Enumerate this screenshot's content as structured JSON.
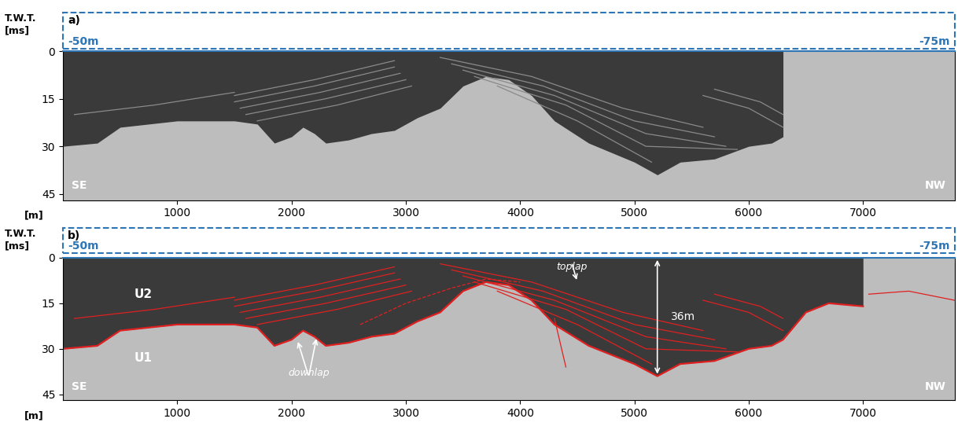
{
  "chart_data": [
    {
      "type": "seismic_profile",
      "panel": "a)",
      "depth_labels": [
        "-50m",
        "-75m"
      ],
      "ylabel": "T.W.T.\n[ms]",
      "xlabel": "[m]",
      "directions": [
        "SE",
        "NW"
      ],
      "xlim": [
        0,
        7800
      ],
      "ylim": [
        47,
        0
      ],
      "xticks": [
        1000,
        2000,
        3000,
        4000,
        5000,
        6000,
        7000
      ],
      "yticks": [
        0,
        15,
        30,
        45
      ],
      "box_color": "#2e75b6",
      "reflector_color": "#8a8a8a",
      "boundary": {
        "x": [
          0,
          300,
          500,
          1000,
          1500,
          1700,
          1850,
          2000,
          2100,
          2200,
          2300,
          2500,
          2700,
          2900,
          3100,
          3300,
          3500,
          3700,
          3900,
          4100,
          4300,
          4600,
          5000,
          5200,
          5400,
          5700,
          6000,
          6200,
          6300
        ],
        "y": [
          30,
          29,
          24,
          22,
          22,
          23,
          29,
          27,
          24,
          26,
          29,
          28,
          26,
          25,
          21,
          18,
          11,
          8,
          9,
          14,
          22,
          29,
          35,
          39,
          35,
          34,
          30,
          29,
          27
        ]
      },
      "reflectors": [
        {
          "x": [
            100,
            800,
            1500
          ],
          "y": [
            20,
            17,
            13
          ]
        },
        {
          "x": [
            1500,
            2200,
            2900
          ],
          "y": [
            14,
            9,
            3
          ]
        },
        {
          "x": [
            1500,
            2200,
            2900
          ],
          "y": [
            16,
            11,
            5
          ]
        },
        {
          "x": [
            1550,
            2250,
            2950
          ],
          "y": [
            18,
            13,
            7
          ]
        },
        {
          "x": [
            1600,
            2300,
            3000
          ],
          "y": [
            20,
            15,
            9
          ]
        },
        {
          "x": [
            1700,
            2400,
            3050
          ],
          "y": [
            22,
            17,
            11
          ]
        },
        {
          "x": [
            3300,
            4100,
            4900,
            5600
          ],
          "y": [
            2,
            8,
            18,
            24
          ]
        },
        {
          "x": [
            3400,
            4200,
            5000,
            5700
          ],
          "y": [
            4,
            11,
            22,
            27
          ]
        },
        {
          "x": [
            3500,
            4300,
            5100,
            5800
          ],
          "y": [
            6,
            14,
            26,
            30
          ]
        },
        {
          "x": [
            3600,
            4400,
            5100,
            5900
          ],
          "y": [
            8,
            17,
            30,
            31
          ]
        },
        {
          "x": [
            3800,
            4500,
            5150
          ],
          "y": [
            11,
            22,
            35
          ]
        },
        {
          "x": [
            5600,
            6000,
            6300
          ],
          "y": [
            14,
            18,
            24
          ]
        },
        {
          "x": [
            5700,
            6100,
            6300
          ],
          "y": [
            12,
            16,
            20
          ]
        }
      ]
    },
    {
      "type": "seismic_profile",
      "panel": "b)",
      "depth_labels": [
        "-50m",
        "-75m"
      ],
      "ylabel": "T.W.T.\n[ms]",
      "xlabel": "[m]",
      "directions": [
        "SE",
        "NW"
      ],
      "xlim": [
        0,
        7800
      ],
      "ylim": [
        47,
        0
      ],
      "xticks": [
        1000,
        2000,
        3000,
        4000,
        5000,
        6000,
        7000
      ],
      "yticks": [
        0,
        15,
        30,
        45
      ],
      "box_color": "#2e75b6",
      "color": "#e02020",
      "boundary": {
        "x": [
          0,
          300,
          500,
          1000,
          1500,
          1700,
          1850,
          2000,
          2100,
          2200,
          2300,
          2500,
          2700,
          2900,
          3100,
          3300,
          3500,
          3700,
          3900,
          4100,
          4300,
          4600,
          5000,
          5200,
          5400,
          5700,
          6000,
          6200,
          6300,
          6500,
          6700,
          7000
        ],
        "y": [
          30,
          29,
          24,
          22,
          22,
          23,
          29,
          27,
          24,
          26,
          29,
          28,
          26,
          25,
          21,
          18,
          11,
          8,
          9,
          14,
          22,
          29,
          35,
          39,
          35,
          34,
          30,
          29,
          27,
          18,
          15,
          16
        ]
      },
      "reflectors": [
        {
          "x": [
            7050,
            7400,
            7800
          ],
          "y": [
            12,
            11,
            14
          ]
        },
        {
          "x": [
            2600,
            3000,
            3400,
            3700,
            4000
          ],
          "y": [
            22,
            15,
            10,
            7,
            8
          ],
          "line_style": "dashed"
        },
        {
          "x": [
            4300,
            4350,
            4400
          ],
          "y": [
            20,
            28,
            36
          ]
        },
        {
          "x": [
            100,
            800,
            1500
          ],
          "y": [
            20,
            17,
            13
          ]
        },
        {
          "x": [
            1500,
            2200,
            2900
          ],
          "y": [
            14,
            9,
            3
          ]
        },
        {
          "x": [
            1500,
            2200,
            2900
          ],
          "y": [
            16,
            11,
            5
          ]
        },
        {
          "x": [
            1550,
            2250,
            2950
          ],
          "y": [
            18,
            13,
            7
          ]
        },
        {
          "x": [
            1600,
            2300,
            3000
          ],
          "y": [
            20,
            15,
            9
          ]
        },
        {
          "x": [
            1700,
            2400,
            3050
          ],
          "y": [
            22,
            17,
            11
          ]
        },
        {
          "x": [
            3300,
            4100,
            4900,
            5600
          ],
          "y": [
            2,
            8,
            18,
            24
          ]
        },
        {
          "x": [
            3400,
            4200,
            5000,
            5700
          ],
          "y": [
            4,
            11,
            22,
            27
          ]
        },
        {
          "x": [
            3500,
            4300,
            5100,
            5800
          ],
          "y": [
            6,
            14,
            26,
            30
          ]
        },
        {
          "x": [
            3600,
            4400,
            5100,
            5900
          ],
          "y": [
            8,
            17,
            30,
            31
          ]
        },
        {
          "x": [
            3800,
            4500,
            5150
          ],
          "y": [
            11,
            22,
            35
          ]
        },
        {
          "x": [
            5600,
            6000,
            6300
          ],
          "y": [
            14,
            18,
            24
          ]
        },
        {
          "x": [
            5700,
            6100,
            6300
          ],
          "y": [
            12,
            16,
            20
          ]
        }
      ],
      "unit_labels": [
        {
          "text": "U2",
          "x": 700,
          "y": 12
        },
        {
          "text": "U1",
          "x": 700,
          "y": 33
        }
      ],
      "annotations": [
        {
          "text": "downlap",
          "x": 2150,
          "y": 38,
          "arrows": [
            [
              2050,
              27
            ],
            [
              2220,
              26
            ]
          ]
        },
        {
          "text": "toplap",
          "x": 4450,
          "y": 3,
          "arrows": [
            [
              4500,
              8
            ]
          ]
        }
      ],
      "measure": {
        "text": "36m",
        "x": 5200,
        "from": 0,
        "to": 39
      }
    }
  ]
}
